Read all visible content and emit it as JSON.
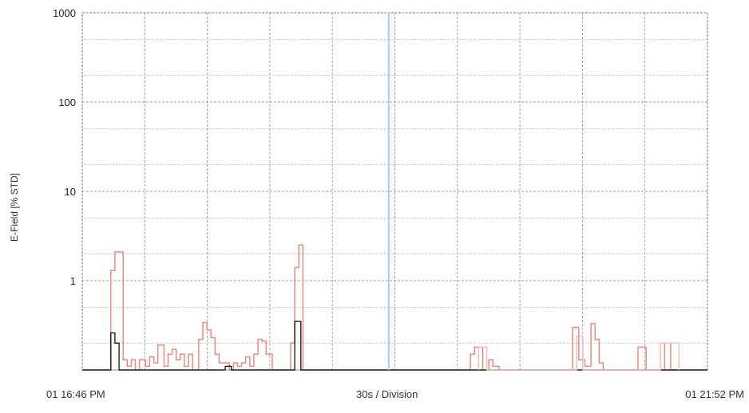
{
  "chart_data": {
    "type": "line",
    "title": "",
    "ylabel": "E-Field [% STD]",
    "xlabel": "30s / Division",
    "x_start_label": "01 16:46 PM",
    "x_end_label": "01 21:52 PM",
    "y_scale": "log",
    "ylim": [
      0.1,
      1000
    ],
    "y_ticks": [
      "1000",
      "100",
      "10",
      "1"
    ],
    "grid": true,
    "x_divisions": 10,
    "marker_time": 150,
    "xlim": [
      0,
      306
    ],
    "colors": {
      "series_1": "#e98b82",
      "series_2": "#111111",
      "series_3": "#f0c0b8",
      "marker": "#a9cdea",
      "grid": "#999999",
      "frame": "#777777"
    },
    "series": [
      {
        "values": [
          [
            0,
            0.1
          ],
          [
            14,
            0.1
          ],
          [
            14,
            1.3
          ],
          [
            16,
            1.3
          ],
          [
            16,
            2.1
          ],
          [
            20,
            2.1
          ],
          [
            20,
            0.13
          ],
          [
            22,
            0.13
          ],
          [
            22,
            0.11
          ],
          [
            24,
            0.11
          ],
          [
            24,
            0.13
          ],
          [
            26,
            0.13
          ],
          [
            26,
            0.1
          ],
          [
            28,
            0.1
          ],
          [
            28,
            0.13
          ],
          [
            31,
            0.13
          ],
          [
            31,
            0.11
          ],
          [
            33,
            0.11
          ],
          [
            33,
            0.14
          ],
          [
            35,
            0.14
          ],
          [
            35,
            0.12
          ],
          [
            37,
            0.12
          ],
          [
            37,
            0.19
          ],
          [
            40,
            0.19
          ],
          [
            40,
            0.11
          ],
          [
            42,
            0.11
          ],
          [
            42,
            0.15
          ],
          [
            44,
            0.15
          ],
          [
            44,
            0.17
          ],
          [
            46,
            0.17
          ],
          [
            46,
            0.13
          ],
          [
            48,
            0.13
          ],
          [
            48,
            0.15
          ],
          [
            50,
            0.15
          ],
          [
            50,
            0.11
          ],
          [
            52,
            0.11
          ],
          [
            52,
            0.15
          ],
          [
            54,
            0.15
          ],
          [
            54,
            0.1
          ],
          [
            57,
            0.1
          ],
          [
            57,
            0.22
          ],
          [
            59,
            0.22
          ],
          [
            59,
            0.34
          ],
          [
            61,
            0.34
          ],
          [
            61,
            0.28
          ],
          [
            63,
            0.28
          ],
          [
            63,
            0.23
          ],
          [
            65,
            0.23
          ],
          [
            65,
            0.15
          ],
          [
            67,
            0.15
          ],
          [
            67,
            0.12
          ],
          [
            72,
            0.12
          ],
          [
            72,
            0.1
          ],
          [
            74,
            0.1
          ],
          [
            74,
            0.12
          ],
          [
            76,
            0.12
          ],
          [
            76,
            0.11
          ],
          [
            78,
            0.11
          ],
          [
            78,
            0.12
          ],
          [
            80,
            0.12
          ],
          [
            80,
            0.14
          ],
          [
            82,
            0.14
          ],
          [
            82,
            0.11
          ],
          [
            84,
            0.11
          ],
          [
            84,
            0.15
          ],
          [
            86,
            0.15
          ],
          [
            86,
            0.22
          ],
          [
            88,
            0.22
          ],
          [
            88,
            0.21
          ],
          [
            90,
            0.21
          ],
          [
            90,
            0.15
          ],
          [
            93,
            0.15
          ],
          [
            93,
            0.1
          ],
          [
            102,
            0.1
          ],
          [
            102,
            0.2
          ],
          [
            104,
            0.2
          ],
          [
            104,
            1.4
          ],
          [
            106,
            1.4
          ],
          [
            106,
            2.5
          ],
          [
            108,
            2.5
          ],
          [
            108,
            0.1
          ],
          [
            190,
            0.1
          ],
          [
            190,
            0.15
          ],
          [
            192,
            0.15
          ],
          [
            192,
            0.18
          ],
          [
            196,
            0.18
          ],
          [
            196,
            0.1
          ],
          [
            199,
            0.1
          ],
          [
            199,
            0.13
          ],
          [
            201,
            0.13
          ],
          [
            201,
            0.11
          ],
          [
            204,
            0.11
          ],
          [
            204,
            0.1
          ],
          [
            240,
            0.1
          ],
          [
            240,
            0.3
          ],
          [
            243,
            0.3
          ],
          [
            243,
            0.13
          ],
          [
            246,
            0.13
          ],
          [
            246,
            0.11
          ],
          [
            249,
            0.11
          ],
          [
            249,
            0.33
          ],
          [
            251,
            0.33
          ],
          [
            251,
            0.22
          ],
          [
            253,
            0.22
          ],
          [
            253,
            0.12
          ],
          [
            255,
            0.12
          ],
          [
            255,
            0.1
          ],
          [
            272,
            0.1
          ],
          [
            272,
            0.18
          ],
          [
            276,
            0.18
          ],
          [
            276,
            0.1
          ],
          [
            285,
            0.1
          ],
          [
            285,
            0.2
          ],
          [
            288,
            0.2
          ],
          [
            288,
            0.1
          ],
          [
            306,
            0.1
          ]
        ],
        "color": "#e98b82"
      },
      {
        "values": [
          [
            0,
            0.1
          ],
          [
            14,
            0.1
          ],
          [
            14,
            0.26
          ],
          [
            16,
            0.26
          ],
          [
            16,
            0.2
          ],
          [
            18,
            0.2
          ],
          [
            18,
            0.1
          ],
          [
            70,
            0.1
          ],
          [
            70,
            0.11
          ],
          [
            73,
            0.11
          ],
          [
            73,
            0.1
          ],
          [
            104,
            0.1
          ],
          [
            104,
            0.35
          ],
          [
            107,
            0.35
          ],
          [
            107,
            0.1
          ],
          [
            306,
            0.1
          ]
        ],
        "color": "#111111"
      },
      {
        "values": [
          [
            194,
            0.1
          ],
          [
            194,
            0.18
          ],
          [
            198,
            0.18
          ],
          [
            198,
            0.1
          ],
          [
            242,
            0.1
          ],
          [
            242,
            0.24
          ],
          [
            245,
            0.24
          ],
          [
            245,
            0.1
          ],
          [
            283,
            0.1
          ],
          [
            283,
            0.2
          ],
          [
            292,
            0.2
          ],
          [
            292,
            0.1
          ]
        ],
        "color": "#f0c0b8"
      }
    ]
  }
}
